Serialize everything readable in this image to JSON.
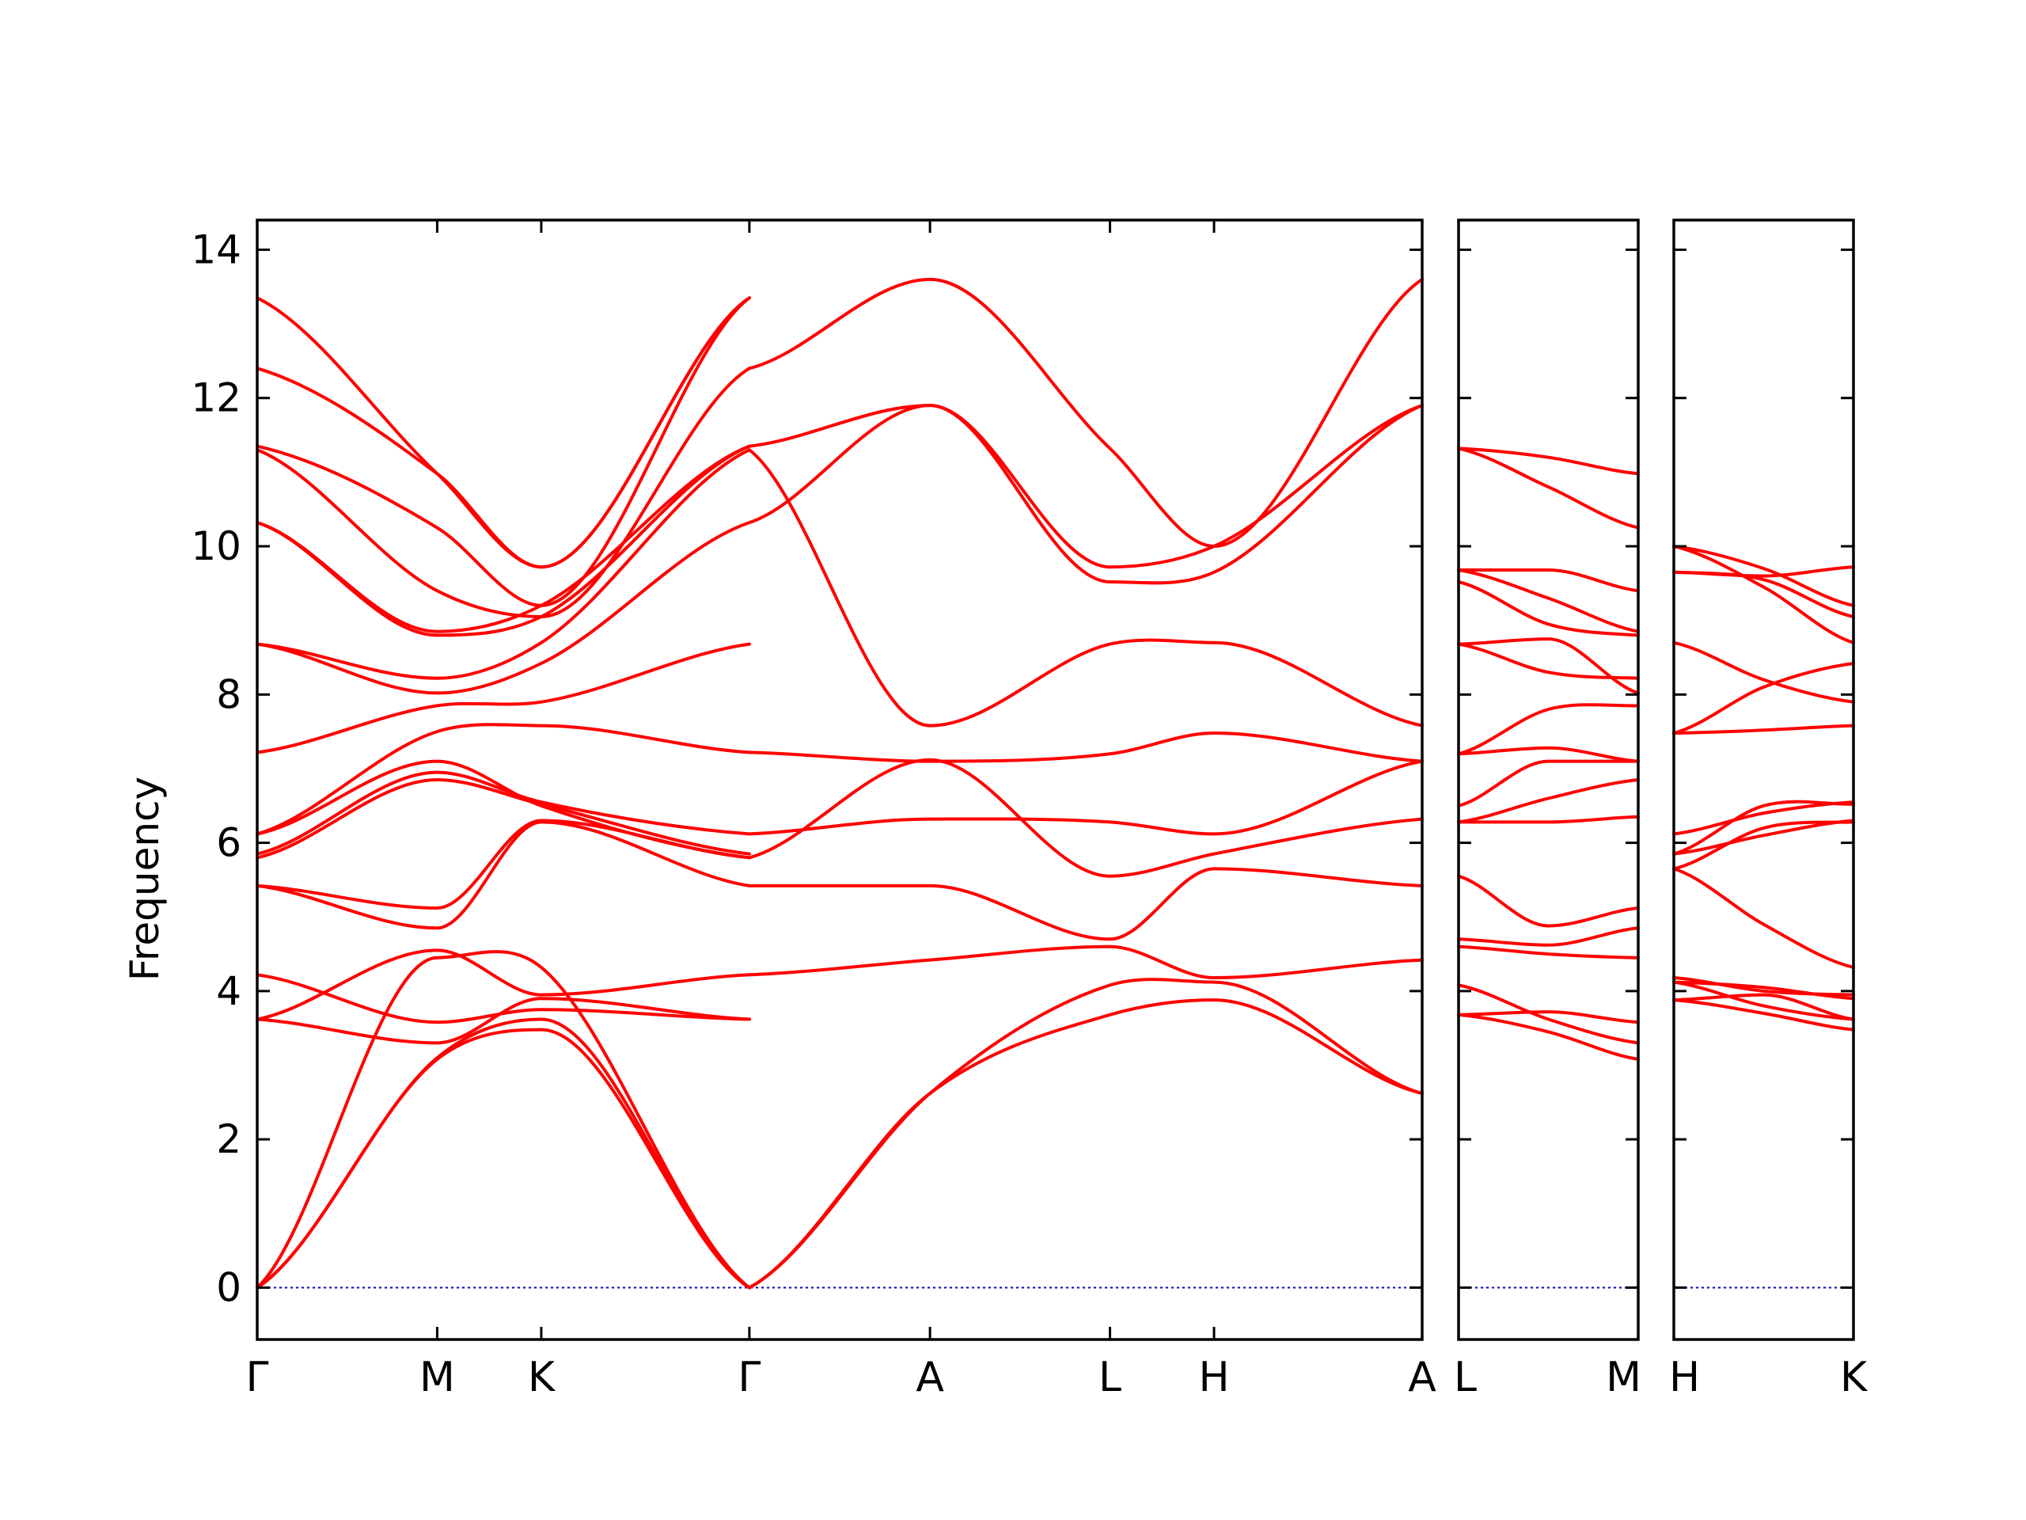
{
  "chart_data": {
    "type": "line",
    "ylabel": "Frequency",
    "ylim": [
      -0.7,
      14.4
    ],
    "yticks": [
      0,
      2,
      4,
      6,
      8,
      10,
      12,
      14
    ],
    "colors": {
      "bands": "#ff0000",
      "zero_line": "#0000cc",
      "axes": "#000000"
    },
    "grid": false,
    "panels": [
      {
        "x_labels": [
          "Γ",
          "M",
          "K",
          "Γ",
          "A",
          "L",
          "H",
          "A"
        ],
        "x_positions": [
          0,
          0.576,
          0.909,
          1.575,
          2.153,
          2.729,
          3.062,
          3.728
        ],
        "series": [
          {
            "name": "",
            "x": [
              0,
              0.576,
              0.909,
              1.575
            ],
            "y": [
              0.0,
              3.08,
              3.48,
              0.0
            ]
          },
          {
            "name": "",
            "x": [
              0,
              0.576,
              0.909,
              1.575
            ],
            "y": [
              0.0,
              3.1,
              3.62,
              0.0
            ]
          },
          {
            "name": "",
            "x": [
              0,
              0.576,
              0.909,
              1.575
            ],
            "y": [
              0.0,
              4.45,
              4.32,
              0.0
            ]
          },
          {
            "name": "",
            "x": [
              0,
              0.576,
              0.909,
              1.575
            ],
            "y": [
              3.62,
              3.3,
              3.9,
              3.62
            ]
          },
          {
            "name": "",
            "x": [
              0,
              0.576,
              0.909,
              1.575
            ],
            "y": [
              3.62,
              4.55,
              3.95,
              4.22
            ]
          },
          {
            "name": "",
            "x": [
              0,
              0.576,
              0.909,
              1.575
            ],
            "y": [
              4.22,
              3.58,
              3.75,
              3.62
            ]
          },
          {
            "name": "",
            "x": [
              0,
              0.576,
              0.909,
              1.575
            ],
            "y": [
              5.42,
              4.85,
              6.28,
              5.42
            ]
          },
          {
            "name": "",
            "x": [
              0,
              0.576,
              0.909,
              1.575
            ],
            "y": [
              5.42,
              5.12,
              6.3,
              5.8
            ]
          },
          {
            "name": "",
            "x": [
              0,
              0.576,
              0.909,
              1.575
            ],
            "y": [
              5.8,
              6.85,
              6.52,
              5.85
            ]
          },
          {
            "name": "",
            "x": [
              0,
              0.576,
              0.909,
              1.575
            ],
            "y": [
              5.85,
              6.95,
              6.55,
              6.12
            ]
          },
          {
            "name": "",
            "x": [
              0,
              0.576,
              0.909,
              1.575
            ],
            "y": [
              6.12,
              7.1,
              6.5,
              5.8
            ]
          },
          {
            "name": "",
            "x": [
              0,
              0.576,
              0.909,
              1.575
            ],
            "y": [
              6.12,
              7.5,
              7.58,
              7.22
            ]
          },
          {
            "name": "",
            "x": [
              0,
              0.576,
              0.909,
              1.575
            ],
            "y": [
              7.22,
              7.85,
              7.9,
              8.68
            ]
          },
          {
            "name": "",
            "x": [
              0,
              0.576,
              0.909,
              1.575
            ],
            "y": [
              8.68,
              8.02,
              8.42,
              10.32
            ]
          },
          {
            "name": "",
            "x": [
              0,
              0.576,
              0.909,
              1.575
            ],
            "y": [
              8.68,
              8.22,
              8.7,
              11.3
            ]
          },
          {
            "name": "",
            "x": [
              0,
              0.576,
              0.909,
              1.575
            ],
            "y": [
              10.32,
              8.8,
              9.05,
              11.35
            ]
          },
          {
            "name": "",
            "x": [
              0,
              0.576,
              0.909,
              1.575
            ],
            "y": [
              10.32,
              8.85,
              9.2,
              11.35
            ]
          },
          {
            "name": "",
            "x": [
              0,
              0.576,
              0.909,
              1.575
            ],
            "y": [
              11.3,
              9.4,
              9.05,
              12.4
            ]
          },
          {
            "name": "",
            "x": [
              0,
              0.576,
              0.909,
              1.575
            ],
            "y": [
              11.35,
              10.25,
              9.2,
              13.35
            ]
          },
          {
            "name": "",
            "x": [
              0,
              0.576,
              0.909,
              1.575
            ],
            "y": [
              12.4,
              10.98,
              9.72,
              13.35
            ]
          },
          {
            "name": "",
            "x": [
              0,
              0.576,
              0.909,
              1.575
            ],
            "y": [
              13.35,
              10.98,
              9.72,
              13.35
            ]
          },
          {
            "name": "",
            "x": [
              1.575,
              2.153,
              2.729,
              3.062,
              3.728
            ],
            "y": [
              0.0,
              2.62,
              3.68,
              3.88,
              2.62
            ]
          },
          {
            "name": "",
            "x": [
              1.575,
              2.153,
              2.729,
              3.062,
              3.728
            ],
            "y": [
              0.0,
              2.62,
              4.08,
              4.12,
              2.62
            ]
          },
          {
            "name": "",
            "x": [
              1.575,
              2.153,
              2.729,
              3.062,
              3.728
            ],
            "y": [
              4.22,
              4.42,
              4.6,
              4.18,
              4.42
            ]
          },
          {
            "name": "",
            "x": [
              1.575,
              2.153,
              2.729,
              3.062,
              3.728
            ],
            "y": [
              5.42,
              5.42,
              4.7,
              5.65,
              5.42
            ]
          },
          {
            "name": "",
            "x": [
              1.575,
              2.153,
              2.729,
              3.062,
              3.728
            ],
            "y": [
              5.8,
              7.12,
              5.55,
              5.85,
              6.32
            ]
          },
          {
            "name": "",
            "x": [
              1.575,
              2.153,
              2.729,
              3.062,
              3.728
            ],
            "y": [
              6.12,
              6.32,
              6.28,
              6.12,
              7.1
            ]
          },
          {
            "name": "",
            "x": [
              1.575,
              2.153,
              2.729,
              3.062,
              3.728
            ],
            "y": [
              7.22,
              7.1,
              7.2,
              7.48,
              7.1
            ]
          },
          {
            "name": "",
            "x": [
              1.575,
              2.153,
              2.729,
              3.062,
              3.728
            ],
            "y": [
              11.3,
              7.58,
              8.68,
              8.7,
              7.58
            ]
          },
          {
            "name": "",
            "x": [
              1.575,
              2.153,
              2.729,
              3.062,
              3.728
            ],
            "y": [
              10.32,
              11.9,
              9.52,
              9.65,
              11.9
            ]
          },
          {
            "name": "",
            "x": [
              1.575,
              2.153,
              2.729,
              3.062,
              3.728
            ],
            "y": [
              11.35,
              11.9,
              9.72,
              10.0,
              11.9
            ]
          },
          {
            "name": "",
            "x": [
              1.575,
              2.153,
              2.729,
              3.062,
              3.728
            ],
            "y": [
              12.4,
              13.6,
              11.32,
              10.0,
              13.6
            ]
          }
        ]
      },
      {
        "x_labels": [
          "L",
          "M"
        ],
        "x_positions": [
          0,
          0.576
        ],
        "series": [
          {
            "name": "",
            "x": [
              0,
              0.288,
              0.576
            ],
            "y": [
              3.68,
              3.45,
              3.08
            ]
          },
          {
            "name": "",
            "x": [
              0,
              0.288,
              0.576
            ],
            "y": [
              3.68,
              3.72,
              3.58
            ]
          },
          {
            "name": "",
            "x": [
              0,
              0.288,
              0.576
            ],
            "y": [
              4.08,
              3.62,
              3.3
            ]
          },
          {
            "name": "",
            "x": [
              0,
              0.288,
              0.576
            ],
            "y": [
              4.6,
              4.5,
              4.45
            ]
          },
          {
            "name": "",
            "x": [
              0,
              0.288,
              0.576
            ],
            "y": [
              4.7,
              4.62,
              4.85
            ]
          },
          {
            "name": "",
            "x": [
              0,
              0.288,
              0.576
            ],
            "y": [
              5.55,
              4.88,
              5.12
            ]
          },
          {
            "name": "",
            "x": [
              0,
              0.288,
              0.576
            ],
            "y": [
              6.28,
              6.28,
              6.35
            ]
          },
          {
            "name": "",
            "x": [
              0,
              0.288,
              0.576
            ],
            "y": [
              6.28,
              6.6,
              6.85
            ]
          },
          {
            "name": "",
            "x": [
              0,
              0.288,
              0.576
            ],
            "y": [
              6.5,
              7.1,
              7.1
            ]
          },
          {
            "name": "",
            "x": [
              0,
              0.288,
              0.576
            ],
            "y": [
              7.2,
              7.28,
              7.1
            ]
          },
          {
            "name": "",
            "x": [
              0,
              0.288,
              0.576
            ],
            "y": [
              7.2,
              7.8,
              7.85
            ]
          },
          {
            "name": "",
            "x": [
              0,
              0.288,
              0.576
            ],
            "y": [
              8.68,
              8.3,
              8.22
            ]
          },
          {
            "name": "",
            "x": [
              0,
              0.288,
              0.576
            ],
            "y": [
              8.68,
              8.75,
              8.02
            ]
          },
          {
            "name": "",
            "x": [
              0,
              0.288,
              0.576
            ],
            "y": [
              9.52,
              8.95,
              8.8
            ]
          },
          {
            "name": "",
            "x": [
              0,
              0.288,
              0.576
            ],
            "y": [
              9.68,
              9.3,
              8.85
            ]
          },
          {
            "name": "",
            "x": [
              0,
              0.288,
              0.576
            ],
            "y": [
              9.68,
              9.68,
              9.4
            ]
          },
          {
            "name": "",
            "x": [
              0,
              0.288,
              0.576
            ],
            "y": [
              11.32,
              10.8,
              10.25
            ]
          },
          {
            "name": "",
            "x": [
              0,
              0.288,
              0.576
            ],
            "y": [
              11.32,
              11.2,
              10.98
            ]
          }
        ]
      },
      {
        "x_labels": [
          "H",
          "K"
        ],
        "x_positions": [
          0,
          0.576
        ],
        "series": [
          {
            "name": "",
            "x": [
              0,
              0.288,
              0.576
            ],
            "y": [
              3.88,
              3.7,
              3.48
            ]
          },
          {
            "name": "",
            "x": [
              0,
              0.288,
              0.576
            ],
            "y": [
              3.88,
              3.95,
              3.62
            ]
          },
          {
            "name": "",
            "x": [
              0,
              0.288,
              0.576
            ],
            "y": [
              4.12,
              3.8,
              3.62
            ]
          },
          {
            "name": "",
            "x": [
              0,
              0.288,
              0.576
            ],
            "y": [
              4.12,
              4.05,
              3.9
            ]
          },
          {
            "name": "",
            "x": [
              0,
              0.288,
              0.576
            ],
            "y": [
              4.18,
              4.0,
              3.95
            ]
          },
          {
            "name": "",
            "x": [
              0,
              0.288,
              0.576
            ],
            "y": [
              5.65,
              4.9,
              4.32
            ]
          },
          {
            "name": "",
            "x": [
              0,
              0.288,
              0.576
            ],
            "y": [
              5.65,
              6.2,
              6.28
            ]
          },
          {
            "name": "",
            "x": [
              0,
              0.288,
              0.576
            ],
            "y": [
              5.85,
              6.1,
              6.3
            ]
          },
          {
            "name": "",
            "x": [
              0,
              0.288,
              0.576
            ],
            "y": [
              5.85,
              6.5,
              6.52
            ]
          },
          {
            "name": "",
            "x": [
              0,
              0.288,
              0.576
            ],
            "y": [
              6.12,
              6.4,
              6.55
            ]
          },
          {
            "name": "",
            "x": [
              0,
              0.288,
              0.576
            ],
            "y": [
              7.48,
              7.52,
              7.58
            ]
          },
          {
            "name": "",
            "x": [
              0,
              0.288,
              0.576
            ],
            "y": [
              7.48,
              8.1,
              8.42
            ]
          },
          {
            "name": "",
            "x": [
              0,
              0.288,
              0.576
            ],
            "y": [
              8.7,
              8.2,
              7.9
            ]
          },
          {
            "name": "",
            "x": [
              0,
              0.288,
              0.576
            ],
            "y": [
              9.65,
              9.6,
              9.72
            ]
          },
          {
            "name": "",
            "x": [
              0,
              0.288,
              0.576
            ],
            "y": [
              9.65,
              9.55,
              9.05
            ]
          },
          {
            "name": "",
            "x": [
              0,
              0.288,
              0.576
            ],
            "y": [
              10.0,
              9.7,
              9.2
            ]
          },
          {
            "name": "",
            "x": [
              0,
              0.288,
              0.576
            ],
            "y": [
              10.0,
              9.45,
              8.7
            ]
          }
        ]
      }
    ]
  }
}
